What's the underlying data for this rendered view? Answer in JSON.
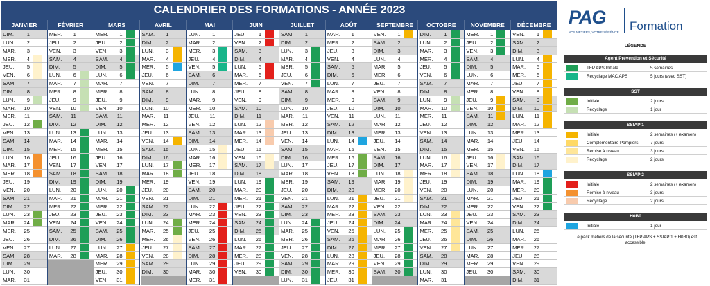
{
  "title": "CALENDRIER DES FORMATIONS - ANNÉE 2023",
  "brand": {
    "logo": "PAG",
    "tagline": "NOS MÉTIERS, VOTRE SÉRÉNITÉ",
    "word": "Formation"
  },
  "colors": {
    "header": "#2b4a7c",
    "weekend": "#d9d9d9",
    "tfp": "#1e9e57",
    "mac": "#18b58a",
    "sst_init": "#70ad47",
    "sst_rec": "#c6e0b4",
    "ssiap1_init": "#f5b400",
    "ssiap1_comp": "#ffd966",
    "ssiap1_remise": "#ffe699",
    "ssiap1_rec": "#fff2cc",
    "ssiap2_init": "#e3201b",
    "ssiap2_remise": "#f4912f",
    "ssiap2_rec": "#f8cbad",
    "h0b0": "#1fa5e0"
  },
  "months": [
    "JANVIER",
    "FÉVRIER",
    "MARS",
    "AVRIL",
    "MAI",
    "JUIN",
    "JUILLET",
    "AOÛT",
    "SEPTEMBRE",
    "OCTOBRE",
    "NOVEMBRE",
    "DÉCEMBRE"
  ],
  "weekday_abbr": [
    "DIM.",
    "LUN.",
    "MAR.",
    "MER.",
    "JEU.",
    "VEN.",
    "SAM."
  ],
  "month_lengths": [
    31,
    28,
    31,
    30,
    31,
    30,
    31,
    31,
    30,
    31,
    30,
    31
  ],
  "month_start_weekday": [
    0,
    3,
    3,
    6,
    1,
    4,
    6,
    2,
    5,
    0,
    3,
    5
  ],
  "events": [
    {
      "m": 0,
      "from": 4,
      "to": 6,
      "c": "ssiap1_rec"
    },
    {
      "m": 0,
      "from": 16,
      "to": 18,
      "c": "ssiap2_remise"
    },
    {
      "m": 0,
      "from": 12,
      "to": 12,
      "c": "sst_init"
    },
    {
      "m": 0,
      "from": 9,
      "to": 9,
      "c": "sst_rec"
    },
    {
      "m": 0,
      "from": 23,
      "to": 24,
      "c": "sst_init"
    },
    {
      "m": 1,
      "from": 6,
      "to": 9,
      "c": "sst_rec"
    },
    {
      "m": 1,
      "from": 10,
      "to": 10,
      "c": "sst_rec"
    },
    {
      "m": 1,
      "from": 16,
      "to": 17,
      "c": "sst_rec"
    },
    {
      "m": 1,
      "from": 13,
      "to": 28,
      "c": "tfp"
    },
    {
      "m": 2,
      "from": 1,
      "to": 6,
      "c": "tfp"
    },
    {
      "m": 2,
      "from": 20,
      "to": 31,
      "c": "tfp"
    },
    {
      "m": 2,
      "from": 27,
      "to": 31,
      "c": "ssiap1_init"
    },
    {
      "m": 3,
      "from": 3,
      "to": 4,
      "c": "ssiap1_init"
    },
    {
      "m": 3,
      "from": 5,
      "to": 5,
      "c": "h0b0"
    },
    {
      "m": 3,
      "from": 14,
      "to": 14,
      "c": "ssiap1_init"
    },
    {
      "m": 3,
      "from": 17,
      "to": 18,
      "c": "sst_init"
    },
    {
      "m": 3,
      "from": 24,
      "to": 25,
      "c": "sst_init"
    },
    {
      "m": 3,
      "from": 26,
      "to": 28,
      "c": "ssiap1_rec"
    },
    {
      "m": 4,
      "from": 3,
      "to": 5,
      "c": "mac"
    },
    {
      "m": 4,
      "from": 15,
      "to": 17,
      "c": "ssiap1_rec"
    },
    {
      "m": 4,
      "from": 22,
      "to": 31,
      "c": "ssiap2_init"
    },
    {
      "m": 5,
      "from": 1,
      "to": 2,
      "c": "ssiap2_init"
    },
    {
      "m": 5,
      "from": 5,
      "to": 6,
      "c": "ssiap2_init"
    },
    {
      "m": 5,
      "from": 12,
      "to": 14,
      "c": "ssiap2_rec"
    },
    {
      "m": 5,
      "from": 16,
      "to": 17,
      "c": "ssiap1_rec"
    },
    {
      "m": 5,
      "from": 19,
      "to": 30,
      "c": "tfp"
    },
    {
      "m": 6,
      "from": 3,
      "to": 7,
      "c": "tfp"
    },
    {
      "m": 6,
      "from": 24,
      "to": 31,
      "c": "tfp"
    },
    {
      "m": 7,
      "from": 14,
      "to": 14,
      "c": "h0b0"
    },
    {
      "m": 7,
      "from": 16,
      "to": 18,
      "c": "sst_init"
    },
    {
      "m": 7,
      "from": 21,
      "to": 31,
      "c": "ssiap1_init"
    },
    {
      "m": 8,
      "from": 1,
      "to": 1,
      "c": "ssiap1_init"
    },
    {
      "m": 8,
      "from": 18,
      "to": 21,
      "c": "ssiap1_rec"
    },
    {
      "m": 8,
      "from": 25,
      "to": 30,
      "c": "tfp"
    },
    {
      "m": 9,
      "from": 1,
      "to": 6,
      "c": "tfp"
    },
    {
      "m": 9,
      "from": 9,
      "to": 10,
      "c": "sst_rec"
    },
    {
      "m": 9,
      "from": 16,
      "to": 18,
      "c": "ssiap1_rec"
    },
    {
      "m": 9,
      "from": 23,
      "to": 27,
      "c": "ssiap1_remise"
    },
    {
      "m": 10,
      "from": 1,
      "to": 3,
      "c": "tfp"
    },
    {
      "m": 10,
      "from": 9,
      "to": 11,
      "c": "ssiap1_init"
    },
    {
      "m": 10,
      "from": 16,
      "to": 17,
      "c": "ssiap1_rec"
    },
    {
      "m": 11,
      "from": 1,
      "to": 1,
      "c": "ssiap1_init"
    },
    {
      "m": 11,
      "from": 4,
      "to": 12,
      "c": "ssiap1_init"
    },
    {
      "m": 11,
      "from": 18,
      "to": 18,
      "c": "h0b0"
    },
    {
      "m": 11,
      "from": 19,
      "to": 22,
      "c": "tfp"
    }
  ],
  "legend": {
    "heading": "LÉGENDE",
    "groups": [
      {
        "title": "Agent Prévention et Sécurité",
        "items": [
          {
            "c": "tfp",
            "name": "TFP APS Initiale",
            "dur": "5 semaines"
          },
          {
            "c": "mac",
            "name": "Recyclage MAC APS",
            "dur": "5 jours (avec SST)"
          }
        ]
      },
      {
        "title": "SST",
        "items": [
          {
            "c": "sst_init",
            "name": "Initiale",
            "dur": "2 jours"
          },
          {
            "c": "sst_rec",
            "name": "Recyclage",
            "dur": "1 jour"
          }
        ]
      },
      {
        "title": "SSIAP 1",
        "items": [
          {
            "c": "ssiap1_init",
            "name": "Initiale",
            "dur": "2 semaines (+ examen)"
          },
          {
            "c": "ssiap1_comp",
            "name": "Complémentaire Pompiers",
            "dur": "7 jours"
          },
          {
            "c": "ssiap1_remise",
            "name": "Remise à niveau",
            "dur": "3 jours"
          },
          {
            "c": "ssiap1_rec",
            "name": "Recyclage",
            "dur": "2 jours"
          }
        ]
      },
      {
        "title": "SSIAP 2",
        "items": [
          {
            "c": "ssiap2_init",
            "name": "Initiale",
            "dur": "2 semaines (+ examen)"
          },
          {
            "c": "ssiap2_remise",
            "name": "Remise à niveau",
            "dur": "3 jours"
          },
          {
            "c": "ssiap2_rec",
            "name": "Recyclage",
            "dur": "2 jours"
          }
        ]
      },
      {
        "title": "H0B0",
        "items": [
          {
            "c": "h0b0",
            "name": "Initiale",
            "dur": "1 jour"
          }
        ]
      }
    ],
    "note": "Le pack métiers de la sécurité (TFP APS + SSIAP 1 + H0B0) est accessible."
  }
}
